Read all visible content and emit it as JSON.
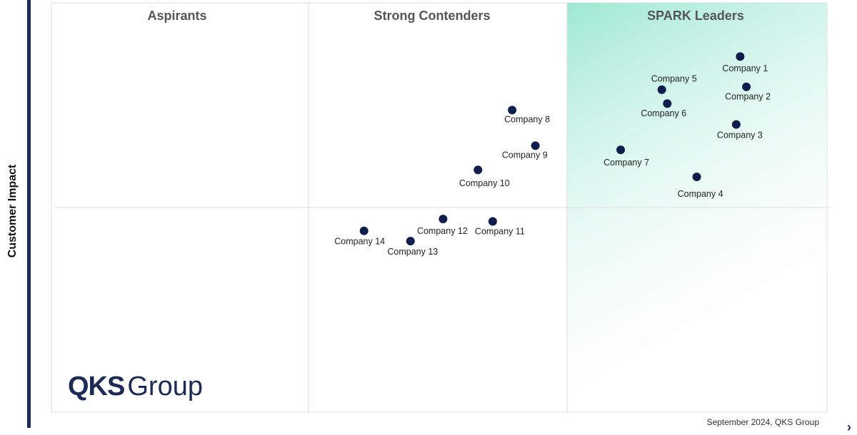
{
  "chart_data": {
    "type": "scatter",
    "ylabel": "Customer Impact",
    "quadrants": [
      "Aspirants",
      "Strong Contenders",
      "SPARK Leaders"
    ],
    "xlim": [
      0,
      100
    ],
    "ylim": [
      0,
      100
    ],
    "grid": true,
    "points": [
      {
        "label": "Company 1",
        "x": 88.8,
        "y": 86.9
      },
      {
        "label": "Company 2",
        "x": 89.6,
        "y": 79.5
      },
      {
        "label": "Company 3",
        "x": 88.3,
        "y": 70.3
      },
      {
        "label": "Company 4",
        "x": 83.2,
        "y": 57.5
      },
      {
        "label": "Company 5",
        "x": 78.7,
        "y": 78.8
      },
      {
        "label": "Company 6",
        "x": 79.4,
        "y": 75.4
      },
      {
        "label": "Company 7",
        "x": 73.4,
        "y": 64.1
      },
      {
        "label": "Company 8",
        "x": 59.4,
        "y": 73.8
      },
      {
        "label": "Company 9",
        "x": 62.4,
        "y": 65.1
      },
      {
        "label": "Company 10",
        "x": 55.0,
        "y": 59.2
      },
      {
        "label": "Company 11",
        "x": 56.9,
        "y": 46.6
      },
      {
        "label": "Company 12",
        "x": 50.5,
        "y": 47.2
      },
      {
        "label": "Company 13",
        "x": 46.3,
        "y": 41.8
      },
      {
        "label": "Company 14",
        "x": 40.3,
        "y": 44.3
      }
    ]
  },
  "logo": {
    "strong": "QKS",
    "light": "Group"
  },
  "footer": "September 2024, QKS Group",
  "colors": {
    "marker": "#0f1f4d",
    "axis": "#1c2a57",
    "leader_gradient": "#9ee8d2"
  }
}
